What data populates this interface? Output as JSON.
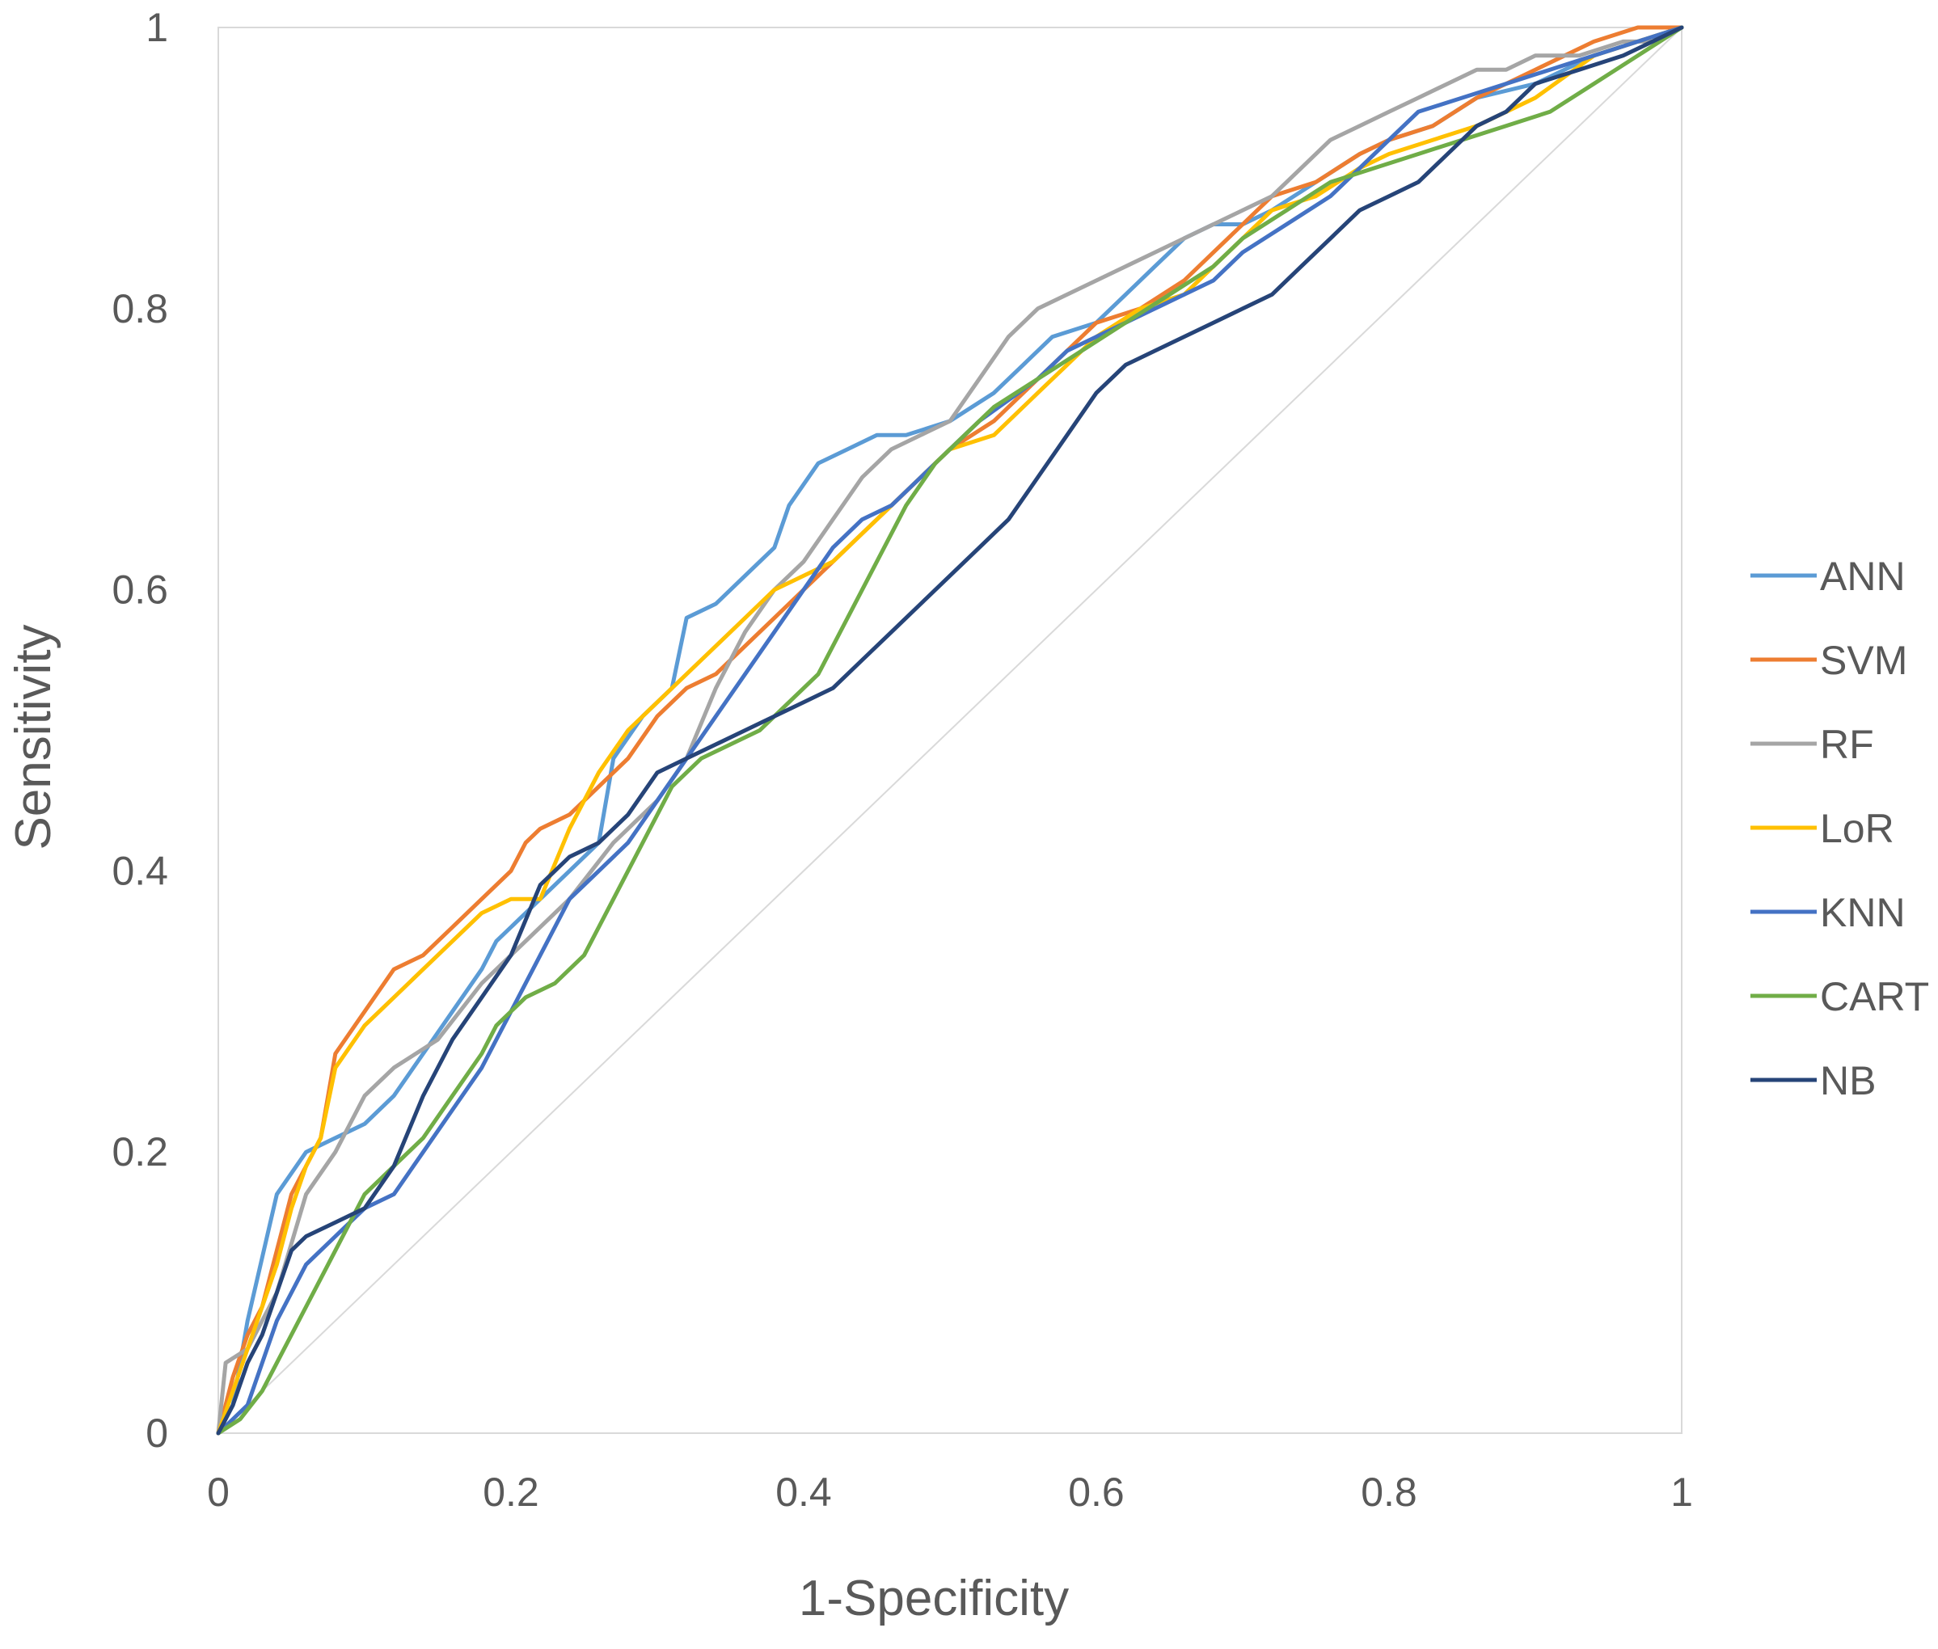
{
  "chart_data": {
    "type": "line",
    "title": "",
    "xlabel": "1-Specificity",
    "ylabel": "Sensitivity",
    "xlim": [
      0,
      1
    ],
    "ylim": [
      0,
      1
    ],
    "x_ticks": [
      0,
      0.2,
      0.4,
      0.6,
      0.8,
      1
    ],
    "y_ticks": [
      0,
      0.2,
      0.4,
      0.6,
      0.8,
      1
    ],
    "x_tick_labels": [
      "0",
      "0.2",
      "0.4",
      "0.6",
      "0.8",
      "1"
    ],
    "y_tick_labels": [
      "0",
      "0.2",
      "0.4",
      "0.6",
      "0.8",
      "1"
    ],
    "grid": false,
    "legend_position": "right",
    "reference_line": {
      "name": "chance",
      "x": [
        0,
        1
      ],
      "y": [
        0,
        1
      ],
      "color": "#d9d9d9"
    },
    "series": [
      {
        "name": "ANN",
        "color": "#5B9BD5",
        "x": [
          0,
          0.01,
          0.02,
          0.04,
          0.06,
          0.08,
          0.1,
          0.12,
          0.14,
          0.16,
          0.18,
          0.19,
          0.2,
          0.22,
          0.24,
          0.26,
          0.27,
          0.29,
          0.31,
          0.32,
          0.34,
          0.36,
          0.38,
          0.39,
          0.41,
          0.43,
          0.45,
          0.47,
          0.5,
          0.53,
          0.55,
          0.57,
          0.6,
          0.62,
          0.64,
          0.66,
          0.68,
          0.7,
          0.72,
          0.75,
          0.78,
          0.8,
          0.83,
          0.86,
          0.9,
          0.94,
          0.97,
          1
        ],
        "y": [
          0,
          0.02,
          0.08,
          0.17,
          0.2,
          0.21,
          0.22,
          0.24,
          0.27,
          0.3,
          0.33,
          0.35,
          0.36,
          0.38,
          0.4,
          0.42,
          0.48,
          0.51,
          0.53,
          0.58,
          0.59,
          0.61,
          0.63,
          0.66,
          0.69,
          0.7,
          0.71,
          0.71,
          0.72,
          0.74,
          0.76,
          0.78,
          0.79,
          0.81,
          0.83,
          0.85,
          0.86,
          0.86,
          0.87,
          0.89,
          0.91,
          0.92,
          0.93,
          0.95,
          0.96,
          0.98,
          0.99,
          1
        ]
      },
      {
        "name": "SVM",
        "color": "#ED7D31",
        "x": [
          0,
          0.01,
          0.02,
          0.03,
          0.04,
          0.05,
          0.06,
          0.07,
          0.075,
          0.08,
          0.1,
          0.12,
          0.14,
          0.16,
          0.18,
          0.2,
          0.21,
          0.22,
          0.24,
          0.26,
          0.28,
          0.3,
          0.32,
          0.34,
          0.36,
          0.38,
          0.4,
          0.42,
          0.44,
          0.46,
          0.48,
          0.5,
          0.53,
          0.56,
          0.58,
          0.6,
          0.63,
          0.66,
          0.68,
          0.7,
          0.72,
          0.75,
          0.78,
          0.8,
          0.83,
          0.86,
          0.9,
          0.94,
          0.97,
          1
        ],
        "y": [
          0,
          0.04,
          0.07,
          0.09,
          0.13,
          0.17,
          0.19,
          0.21,
          0.24,
          0.27,
          0.3,
          0.33,
          0.34,
          0.36,
          0.38,
          0.4,
          0.42,
          0.43,
          0.44,
          0.46,
          0.48,
          0.51,
          0.53,
          0.54,
          0.56,
          0.58,
          0.6,
          0.62,
          0.64,
          0.66,
          0.68,
          0.7,
          0.72,
          0.75,
          0.77,
          0.79,
          0.8,
          0.82,
          0.84,
          0.86,
          0.88,
          0.89,
          0.91,
          0.92,
          0.93,
          0.95,
          0.97,
          0.99,
          1,
          1
        ]
      },
      {
        "name": "RF",
        "color": "#A5A5A5",
        "x": [
          0,
          0.005,
          0.02,
          0.04,
          0.06,
          0.08,
          0.1,
          0.12,
          0.15,
          0.18,
          0.21,
          0.24,
          0.27,
          0.3,
          0.32,
          0.34,
          0.36,
          0.38,
          0.4,
          0.42,
          0.44,
          0.46,
          0.48,
          0.5,
          0.52,
          0.54,
          0.56,
          0.58,
          0.6,
          0.62,
          0.64,
          0.66,
          0.68,
          0.7,
          0.72,
          0.74,
          0.76,
          0.78,
          0.8,
          0.82,
          0.84,
          0.86,
          0.88,
          0.9,
          0.93,
          0.96,
          0.98,
          1
        ],
        "y": [
          0,
          0.05,
          0.06,
          0.1,
          0.17,
          0.2,
          0.24,
          0.26,
          0.28,
          0.32,
          0.35,
          0.38,
          0.42,
          0.45,
          0.48,
          0.53,
          0.57,
          0.6,
          0.62,
          0.65,
          0.68,
          0.7,
          0.71,
          0.72,
          0.75,
          0.78,
          0.8,
          0.81,
          0.82,
          0.83,
          0.84,
          0.85,
          0.86,
          0.87,
          0.88,
          0.9,
          0.92,
          0.93,
          0.94,
          0.95,
          0.96,
          0.97,
          0.97,
          0.98,
          0.98,
          0.99,
          0.99,
          1
        ]
      },
      {
        "name": "LoR",
        "color": "#FFC000",
        "x": [
          0,
          0.01,
          0.02,
          0.03,
          0.04,
          0.05,
          0.06,
          0.07,
          0.08,
          0.1,
          0.12,
          0.14,
          0.16,
          0.18,
          0.2,
          0.22,
          0.24,
          0.26,
          0.28,
          0.3,
          0.32,
          0.34,
          0.36,
          0.38,
          0.4,
          0.42,
          0.44,
          0.46,
          0.48,
          0.5,
          0.53,
          0.56,
          0.58,
          0.6,
          0.63,
          0.66,
          0.68,
          0.7,
          0.72,
          0.75,
          0.78,
          0.8,
          0.83,
          0.86,
          0.9,
          0.94,
          0.97,
          1
        ],
        "y": [
          0,
          0.03,
          0.06,
          0.09,
          0.12,
          0.16,
          0.19,
          0.21,
          0.26,
          0.29,
          0.31,
          0.33,
          0.35,
          0.37,
          0.38,
          0.38,
          0.43,
          0.47,
          0.5,
          0.52,
          0.54,
          0.56,
          0.58,
          0.6,
          0.61,
          0.62,
          0.64,
          0.66,
          0.68,
          0.7,
          0.71,
          0.74,
          0.76,
          0.78,
          0.8,
          0.81,
          0.83,
          0.85,
          0.87,
          0.88,
          0.9,
          0.91,
          0.92,
          0.93,
          0.95,
          0.98,
          0.99,
          1
        ]
      },
      {
        "name": "KNN",
        "color": "#4472C4",
        "x": [
          0,
          0.02,
          0.04,
          0.06,
          0.08,
          0.1,
          0.12,
          0.14,
          0.16,
          0.18,
          0.2,
          0.22,
          0.24,
          0.26,
          0.28,
          0.3,
          0.32,
          0.34,
          0.36,
          0.38,
          0.4,
          0.42,
          0.44,
          0.46,
          0.48,
          0.5,
          0.52,
          0.56,
          0.58,
          0.6,
          0.62,
          0.64,
          0.66,
          0.68,
          0.7,
          0.73,
          0.76,
          0.78,
          0.8,
          0.82,
          0.85,
          0.88,
          0.91,
          0.94,
          0.97,
          1
        ],
        "y": [
          0,
          0.02,
          0.08,
          0.12,
          0.14,
          0.16,
          0.17,
          0.2,
          0.23,
          0.26,
          0.3,
          0.34,
          0.38,
          0.4,
          0.42,
          0.45,
          0.48,
          0.51,
          0.54,
          0.57,
          0.6,
          0.63,
          0.65,
          0.66,
          0.68,
          0.7,
          0.72,
          0.75,
          0.77,
          0.78,
          0.79,
          0.8,
          0.81,
          0.82,
          0.84,
          0.86,
          0.88,
          0.9,
          0.92,
          0.94,
          0.95,
          0.96,
          0.97,
          0.98,
          0.99,
          1
        ]
      },
      {
        "name": "CART",
        "color": "#70AD47",
        "x": [
          0,
          0.015,
          0.03,
          0.045,
          0.06,
          0.075,
          0.09,
          0.1,
          0.12,
          0.14,
          0.16,
          0.18,
          0.19,
          0.21,
          0.23,
          0.25,
          0.27,
          0.29,
          0.31,
          0.33,
          0.35,
          0.37,
          0.39,
          0.41,
          0.43,
          0.45,
          0.47,
          0.49,
          0.51,
          0.53,
          0.56,
          0.59,
          0.62,
          0.65,
          0.68,
          0.7,
          0.73,
          0.76,
          0.79,
          0.82,
          0.85,
          0.88,
          0.91,
          0.94,
          0.97,
          1
        ],
        "y": [
          0,
          0.01,
          0.03,
          0.06,
          0.09,
          0.12,
          0.15,
          0.17,
          0.19,
          0.21,
          0.24,
          0.27,
          0.29,
          0.31,
          0.32,
          0.34,
          0.38,
          0.42,
          0.46,
          0.48,
          0.49,
          0.5,
          0.52,
          0.54,
          0.58,
          0.62,
          0.66,
          0.69,
          0.71,
          0.73,
          0.75,
          0.77,
          0.79,
          0.81,
          0.83,
          0.85,
          0.87,
          0.89,
          0.9,
          0.91,
          0.92,
          0.93,
          0.94,
          0.96,
          0.98,
          1
        ]
      },
      {
        "name": "NB",
        "color": "#264478",
        "x": [
          0,
          0.01,
          0.02,
          0.03,
          0.04,
          0.05,
          0.06,
          0.08,
          0.1,
          0.12,
          0.14,
          0.16,
          0.18,
          0.2,
          0.22,
          0.24,
          0.26,
          0.28,
          0.3,
          0.32,
          0.34,
          0.36,
          0.38,
          0.4,
          0.42,
          0.44,
          0.46,
          0.48,
          0.5,
          0.52,
          0.54,
          0.56,
          0.58,
          0.6,
          0.62,
          0.64,
          0.66,
          0.68,
          0.7,
          0.72,
          0.74,
          0.76,
          0.78,
          0.8,
          0.82,
          0.84,
          0.86,
          0.88,
          0.9,
          0.93,
          0.96,
          1
        ],
        "y": [
          0,
          0.02,
          0.05,
          0.07,
          0.1,
          0.13,
          0.14,
          0.15,
          0.16,
          0.19,
          0.24,
          0.28,
          0.31,
          0.34,
          0.39,
          0.41,
          0.42,
          0.44,
          0.47,
          0.48,
          0.49,
          0.5,
          0.51,
          0.52,
          0.53,
          0.55,
          0.57,
          0.59,
          0.61,
          0.63,
          0.65,
          0.68,
          0.71,
          0.74,
          0.76,
          0.77,
          0.78,
          0.79,
          0.8,
          0.81,
          0.83,
          0.85,
          0.87,
          0.88,
          0.89,
          0.91,
          0.93,
          0.94,
          0.96,
          0.97,
          0.98,
          1
        ]
      }
    ]
  }
}
